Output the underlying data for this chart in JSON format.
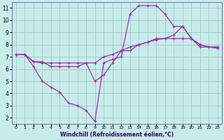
{
  "xlabel": "Windchill (Refroidissement éolien,°C)",
  "background_color": "#c8ecec",
  "grid_color": "#a8c8c8",
  "line_color": "#993399",
  "xlim": [
    -0.5,
    23.5
  ],
  "ylim": [
    1.5,
    11.5
  ],
  "xticks": [
    0,
    1,
    2,
    3,
    4,
    5,
    6,
    7,
    8,
    9,
    10,
    11,
    12,
    13,
    14,
    15,
    16,
    17,
    18,
    19,
    20,
    21,
    22,
    23
  ],
  "yticks": [
    2,
    3,
    4,
    5,
    6,
    7,
    8,
    9,
    10,
    11
  ],
  "line1_x": [
    0,
    1,
    2,
    3,
    4,
    5,
    6,
    7,
    8,
    9,
    10,
    11,
    12,
    13,
    14,
    15,
    16,
    17,
    18,
    19,
    20,
    21,
    22,
    23
  ],
  "line1_y": [
    7.2,
    7.2,
    6.6,
    6.5,
    6.5,
    6.5,
    6.5,
    6.5,
    6.5,
    6.5,
    7.0,
    7.2,
    7.5,
    7.8,
    8.0,
    8.2,
    8.4,
    8.5,
    8.5,
    8.5,
    8.5,
    7.8,
    7.8,
    7.8
  ],
  "line2_x": [
    0,
    1,
    2,
    3,
    4,
    5,
    6,
    7,
    8,
    9,
    10,
    11,
    12,
    13,
    14,
    15,
    16,
    17,
    18,
    19,
    20,
    21,
    22,
    23
  ],
  "line2_y": [
    7.2,
    7.2,
    6.2,
    5.0,
    4.5,
    4.1,
    3.2,
    3.0,
    2.6,
    1.7,
    6.5,
    6.8,
    7.0,
    10.5,
    11.2,
    11.2,
    11.2,
    10.5,
    9.5,
    9.5,
    8.5,
    8.0,
    7.8,
    7.8
  ],
  "line3_x": [
    0,
    1,
    2,
    3,
    4,
    5,
    6,
    7,
    8,
    9,
    10,
    11,
    12,
    13,
    14,
    15,
    16,
    17,
    18,
    19,
    20,
    21,
    22,
    23
  ],
  "line3_y": [
    7.2,
    7.2,
    6.6,
    6.6,
    6.2,
    6.2,
    6.2,
    6.2,
    6.5,
    5.0,
    5.5,
    6.5,
    7.5,
    7.5,
    8.0,
    8.2,
    8.5,
    8.5,
    8.8,
    9.5,
    8.5,
    8.0,
    7.8,
    7.7
  ]
}
